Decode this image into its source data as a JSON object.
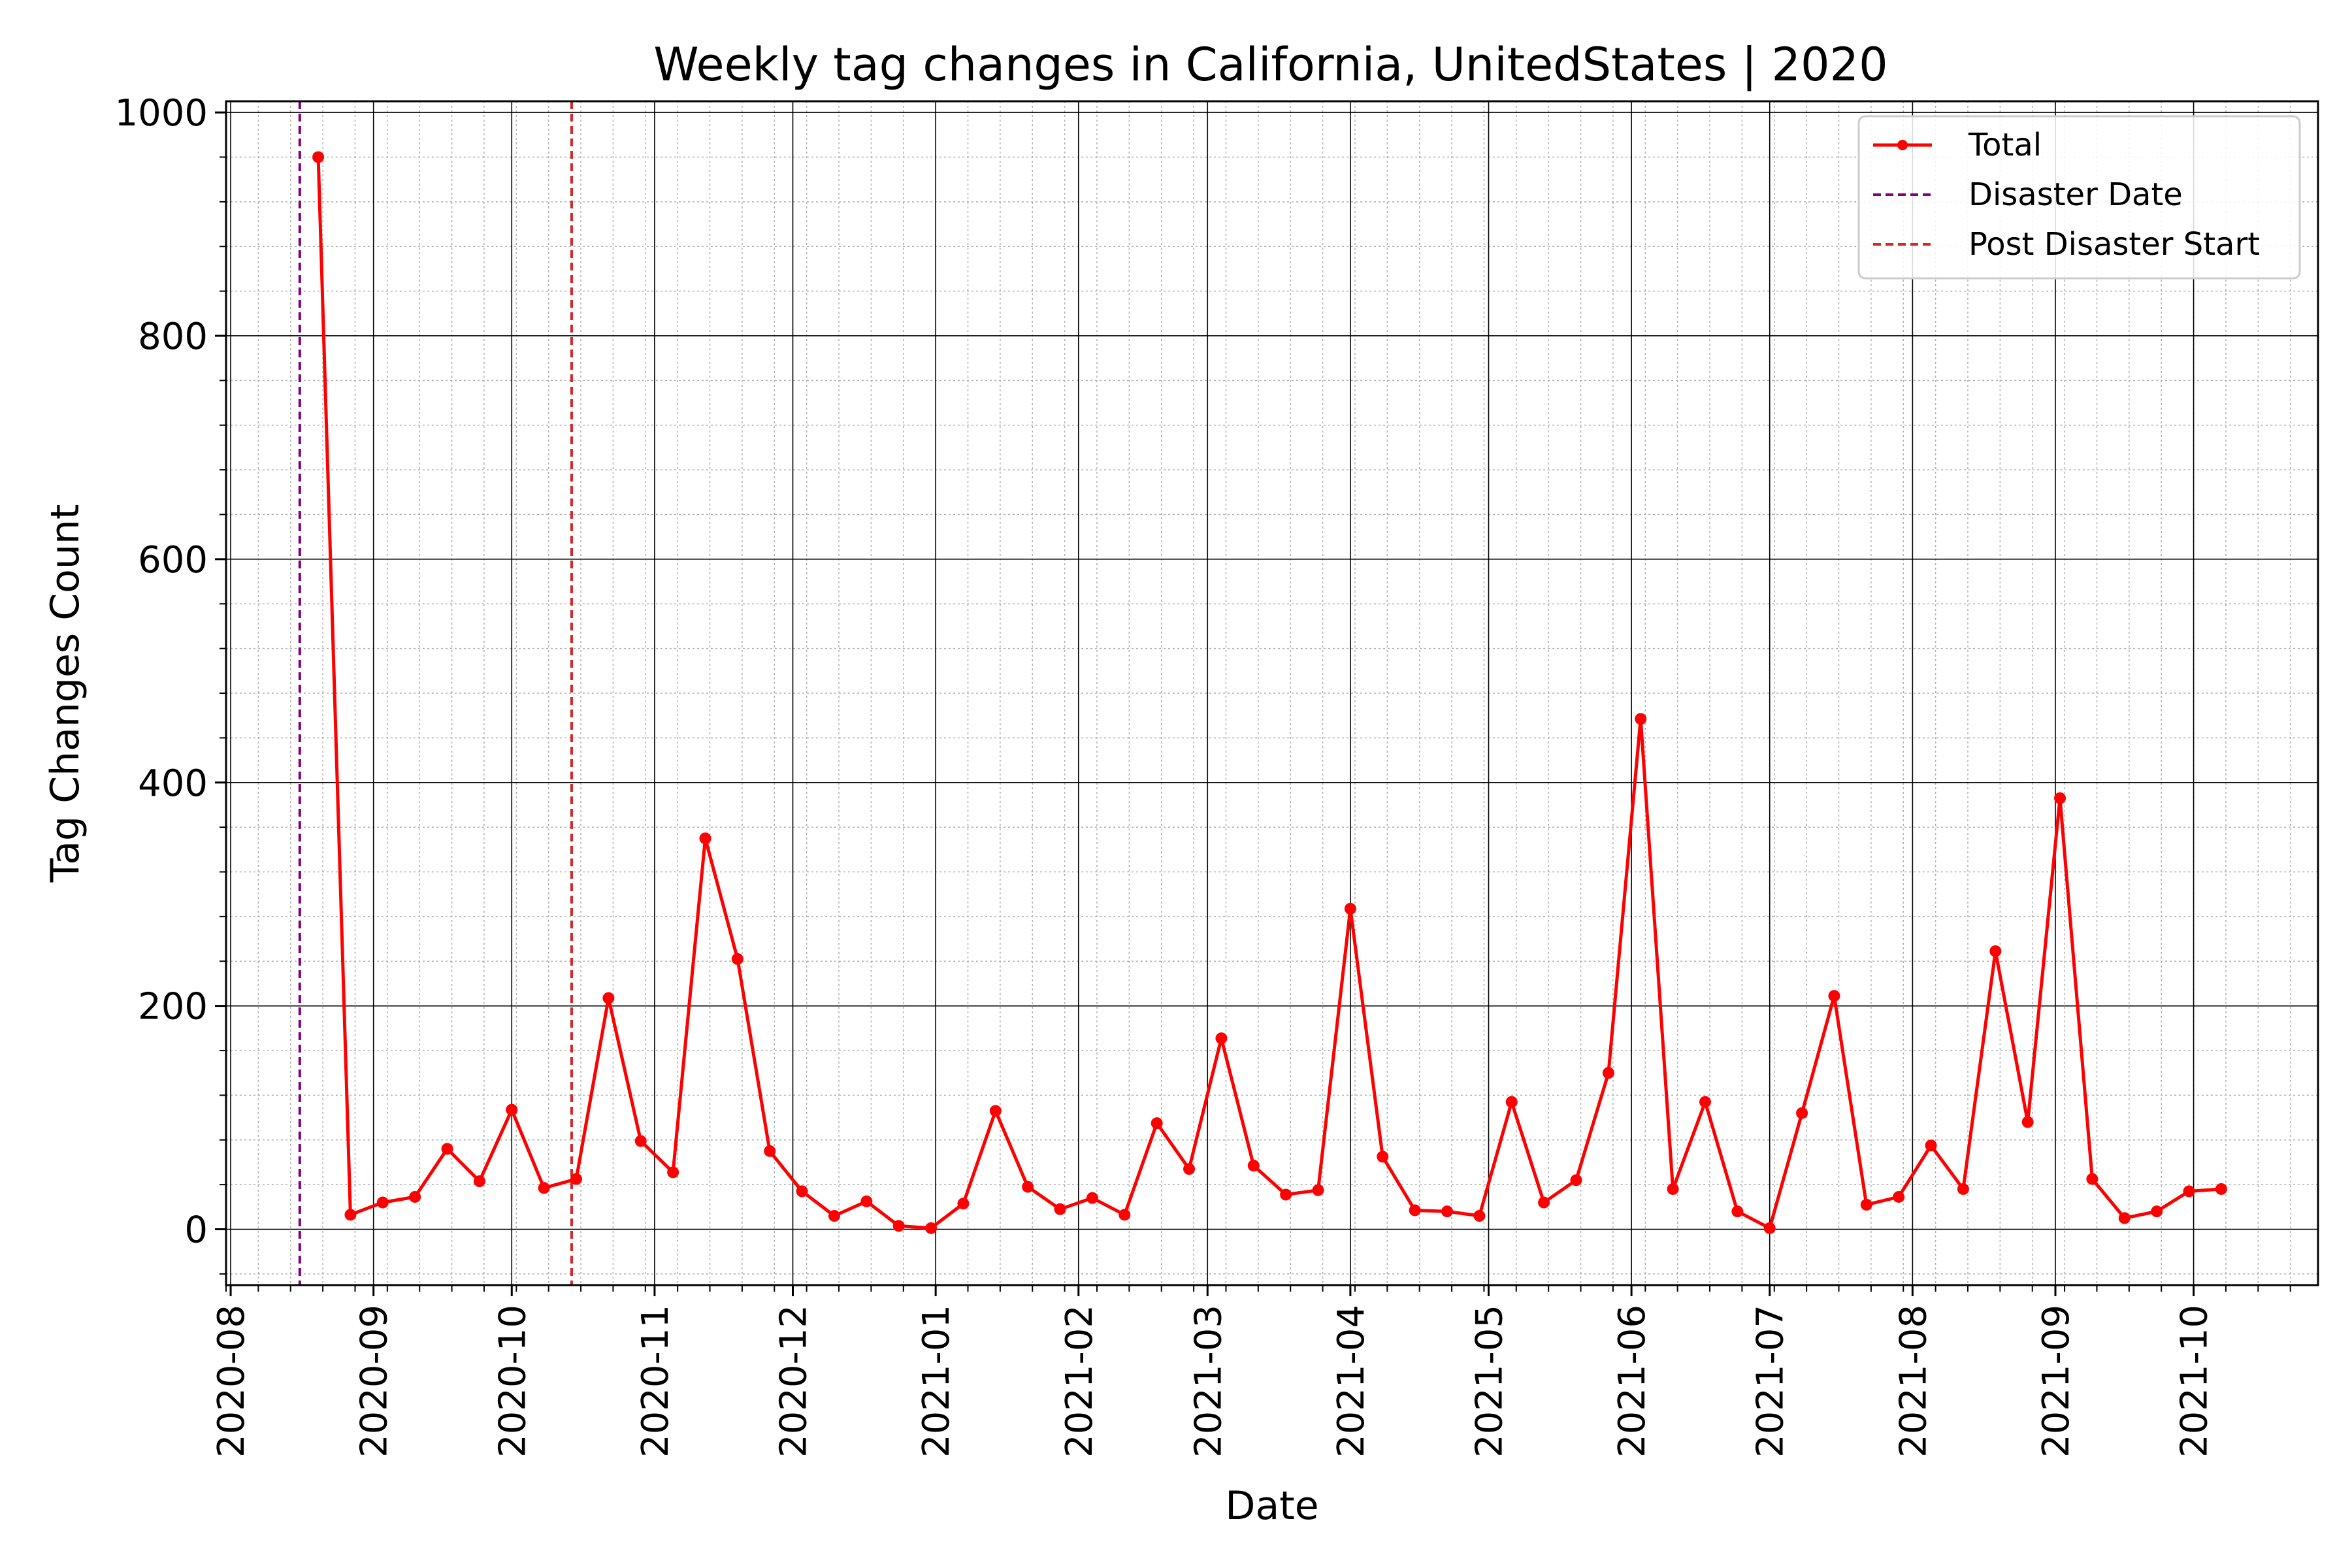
{
  "chart_data": {
    "type": "line",
    "title": "Weekly tag changes in California, UnitedStates | 2020",
    "xlabel": "Date",
    "ylabel": "Tag Changes Count",
    "xlim": [
      "2020-07-31",
      "2021-10-28"
    ],
    "ylim": [
      -50,
      1010
    ],
    "x_ticks": [
      "2020-08",
      "2020-09",
      "2020-10",
      "2020-11",
      "2020-12",
      "2021-01",
      "2021-02",
      "2021-03",
      "2021-04",
      "2021-05",
      "2021-06",
      "2021-07",
      "2021-08",
      "2021-09",
      "2021-10"
    ],
    "y_ticks": [
      0,
      200,
      400,
      600,
      800,
      1000
    ],
    "grid": true,
    "legend": {
      "position": "top-right",
      "entries": [
        "Total",
        "Disaster Date",
        "Post Disaster Start"
      ]
    },
    "series": [
      {
        "name": "Total",
        "color": "#ff0000",
        "x": [
          "2020-08-20",
          "2020-08-27",
          "2020-09-03",
          "2020-09-10",
          "2020-09-17",
          "2020-09-24",
          "2020-10-01",
          "2020-10-08",
          "2020-10-15",
          "2020-10-22",
          "2020-10-29",
          "2020-11-05",
          "2020-11-12",
          "2020-11-19",
          "2020-11-26",
          "2020-12-03",
          "2020-12-10",
          "2020-12-17",
          "2020-12-24",
          "2020-12-31",
          "2021-01-07",
          "2021-01-14",
          "2021-01-21",
          "2021-01-28",
          "2021-02-04",
          "2021-02-11",
          "2021-02-18",
          "2021-02-25",
          "2021-03-04",
          "2021-03-11",
          "2021-03-18",
          "2021-03-25",
          "2021-04-01",
          "2021-04-08",
          "2021-04-15",
          "2021-04-22",
          "2021-04-29",
          "2021-05-06",
          "2021-05-13",
          "2021-05-20",
          "2021-05-27",
          "2021-06-03",
          "2021-06-10",
          "2021-06-17",
          "2021-06-24",
          "2021-07-01",
          "2021-07-08",
          "2021-07-15",
          "2021-07-22",
          "2021-07-29",
          "2021-08-05",
          "2021-08-12",
          "2021-08-19",
          "2021-08-26",
          "2021-09-02",
          "2021-09-09",
          "2021-09-16",
          "2021-09-23",
          "2021-09-30",
          "2021-10-07"
        ],
        "values": [
          960,
          13,
          24,
          29,
          72,
          43,
          107,
          37,
          45,
          207,
          79,
          51,
          350,
          242,
          70,
          34,
          12,
          25,
          3,
          1,
          23,
          106,
          38,
          18,
          28,
          13,
          95,
          54,
          171,
          57,
          31,
          35,
          287,
          65,
          17,
          16,
          12,
          114,
          24,
          44,
          140,
          457,
          36,
          114,
          16,
          1,
          104,
          209,
          22,
          29,
          75,
          36,
          249,
          96,
          386,
          45,
          10,
          16,
          34,
          36
        ]
      }
    ],
    "vlines": [
      {
        "name": "Disaster Date",
        "x": "2020-08-16",
        "color": "#800080",
        "style": "dashed"
      },
      {
        "name": "Post Disaster Start",
        "x": "2020-10-14",
        "color": "#d62728",
        "style": "dashed"
      }
    ]
  }
}
